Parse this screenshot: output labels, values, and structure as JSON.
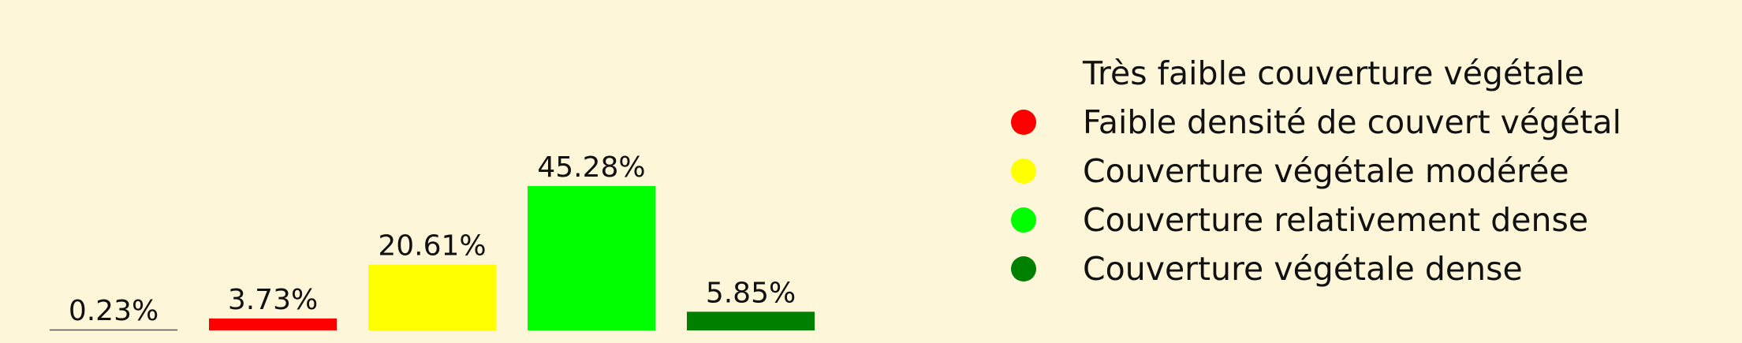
{
  "chart_data": {
    "type": "bar",
    "categories": [
      "Très faible couverture végétale",
      "Faible densité de couvert végétal",
      "Couverture végétale modérée",
      "Couverture relativement dense",
      "Couverture végétale dense"
    ],
    "values": [
      0.23,
      3.73,
      20.61,
      45.28,
      5.85
    ],
    "value_labels": [
      "0.23%",
      "3.73%",
      "20.61%",
      "45.28%",
      "5.85%"
    ],
    "colors": [
      "#fdf6d9",
      "#ff0000",
      "#ffff00",
      "#00ff00",
      "#008000"
    ],
    "title": "",
    "xlabel": "",
    "ylabel": "",
    "ylim": [
      0,
      45.28
    ],
    "grid": false,
    "legend_position": "right",
    "legend_marker": "circle"
  }
}
